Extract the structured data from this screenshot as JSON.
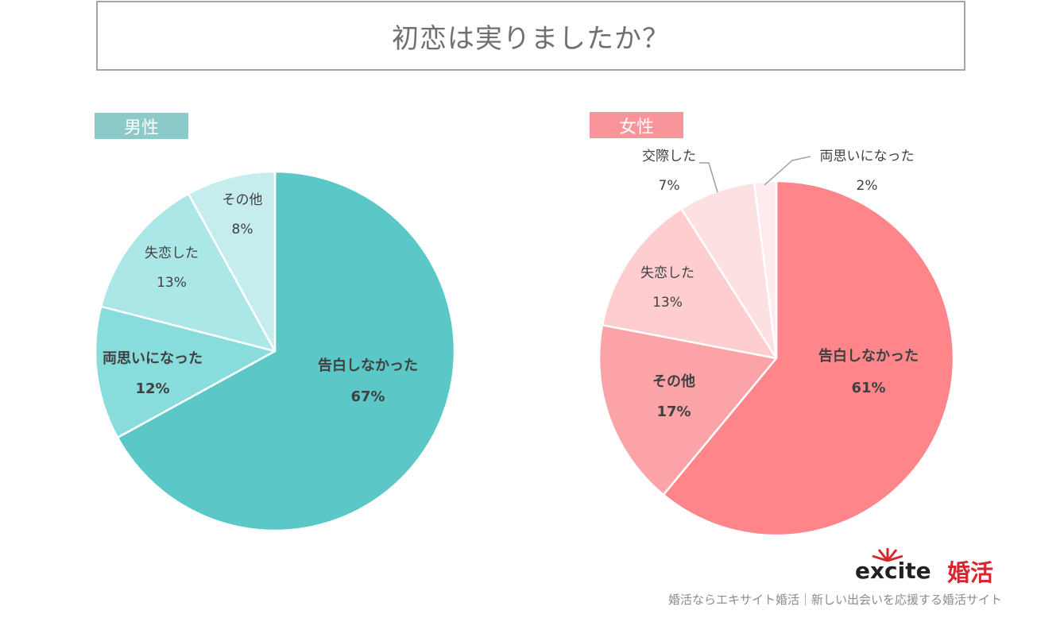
{
  "title": "初恋は実りましたか？",
  "chart_data": [
    {
      "type": "pie",
      "group_label": "男性",
      "slices": [
        {
          "label": "告白しなかった",
          "value": 67,
          "value_label": "67%",
          "color": "#5bc7c7"
        },
        {
          "label": "両思いになった",
          "value": 12,
          "value_label": "12%",
          "color": "#89dcdc"
        },
        {
          "label": "失恋した",
          "value": 13,
          "value_label": "13%",
          "color": "#ace7e7"
        },
        {
          "label": "その他",
          "value": 8,
          "value_label": "8%",
          "color": "#c6eded"
        }
      ]
    },
    {
      "type": "pie",
      "group_label": "女性",
      "slices": [
        {
          "label": "告白しなかった",
          "value": 61,
          "value_label": "61%",
          "color": "#fe868b"
        },
        {
          "label": "その他",
          "value": 17,
          "value_label": "17%",
          "color": "#fba3a7"
        },
        {
          "label": "失恋した",
          "value": 13,
          "value_label": "13%",
          "color": "#fdcdd0"
        },
        {
          "label": "交際した",
          "value": 7,
          "value_label": "7%",
          "color": "#fde0e2"
        },
        {
          "label": "両思いになった",
          "value": 2,
          "value_label": "2%",
          "color": "#fdebed"
        }
      ]
    }
  ],
  "logo": {
    "word": "excite",
    "sub": "婚活"
  },
  "footer": "婚活ならエキサイト婚活｜新しい出会いを応援する婚活サイト"
}
